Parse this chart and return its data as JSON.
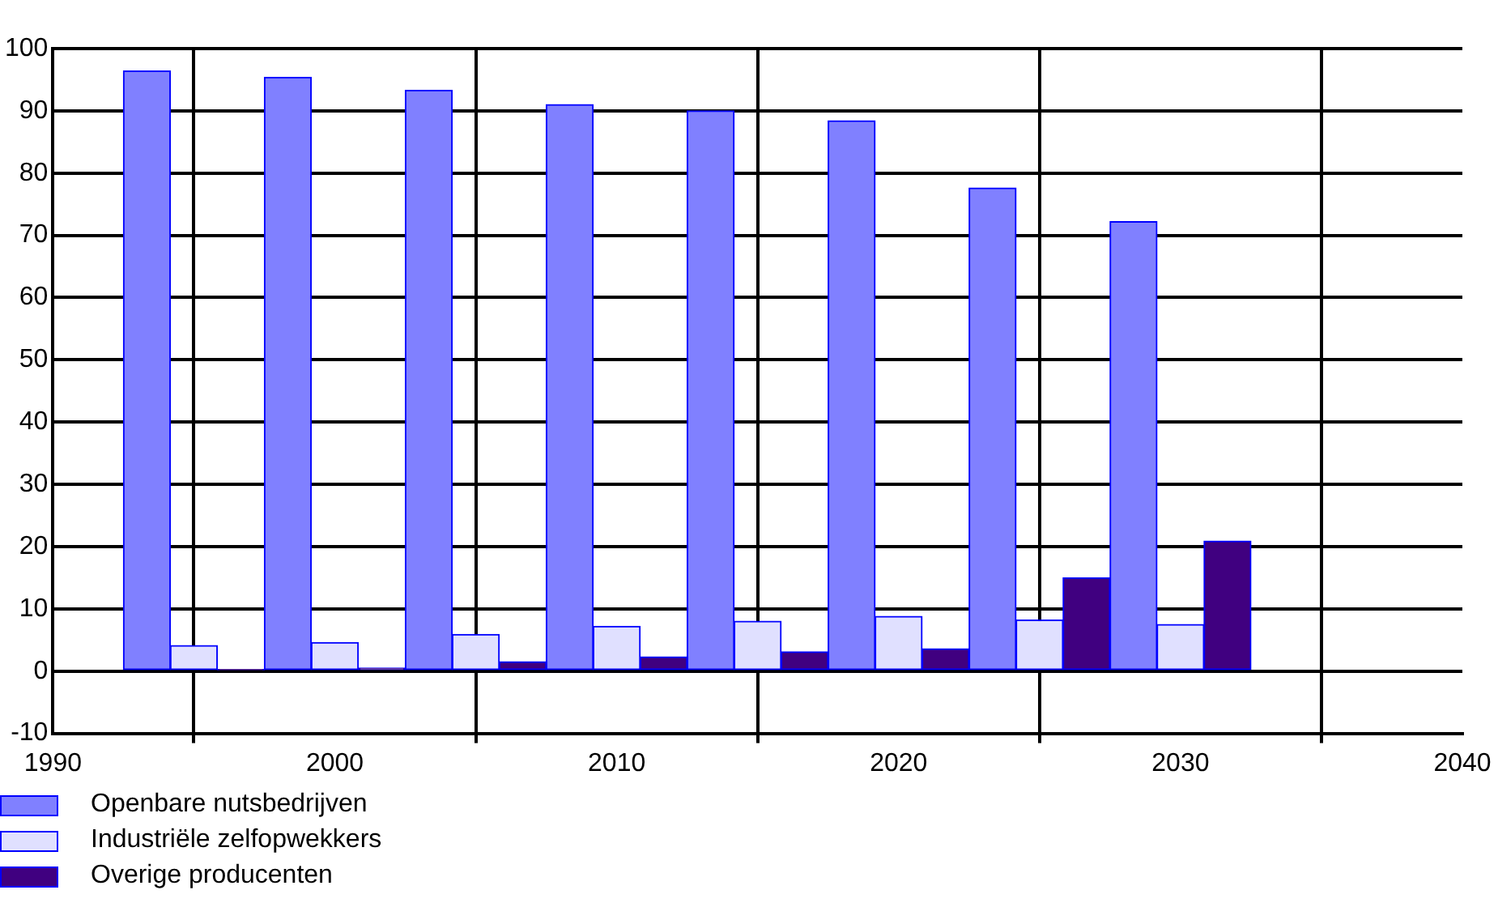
{
  "chart_data": {
    "type": "bar",
    "x": [
      1995,
      2000,
      2005,
      2010,
      2015,
      2020,
      2025,
      2030
    ],
    "series": [
      {
        "name": "Openbare nutsbedrijven",
        "color": "#8080ff",
        "values": [
          96.4,
          95.4,
          93.3,
          91,
          90,
          88.4,
          77.6,
          72.2
        ]
      },
      {
        "name": "Industriële zelfopwekkers",
        "color": "#e0e0ff",
        "values": [
          4.1,
          4.6,
          5.9,
          7.2,
          8,
          8.8,
          8.2,
          7.5
        ]
      },
      {
        "name": "Overige producenten",
        "color": "#400080",
        "values": [
          0.2,
          0.5,
          1.5,
          2.3,
          3.1,
          3.6,
          15,
          20.9
        ]
      }
    ],
    "xlim": [
      1990,
      2040
    ],
    "xticks": [
      1990,
      2000,
      2010,
      2020,
      2030,
      2040
    ],
    "ylim": [
      -10,
      100
    ],
    "yticks": [
      -10,
      0,
      10,
      20,
      30,
      40,
      50,
      60,
      70,
      80,
      90,
      100
    ],
    "grid": true,
    "legend": "bottom left"
  }
}
